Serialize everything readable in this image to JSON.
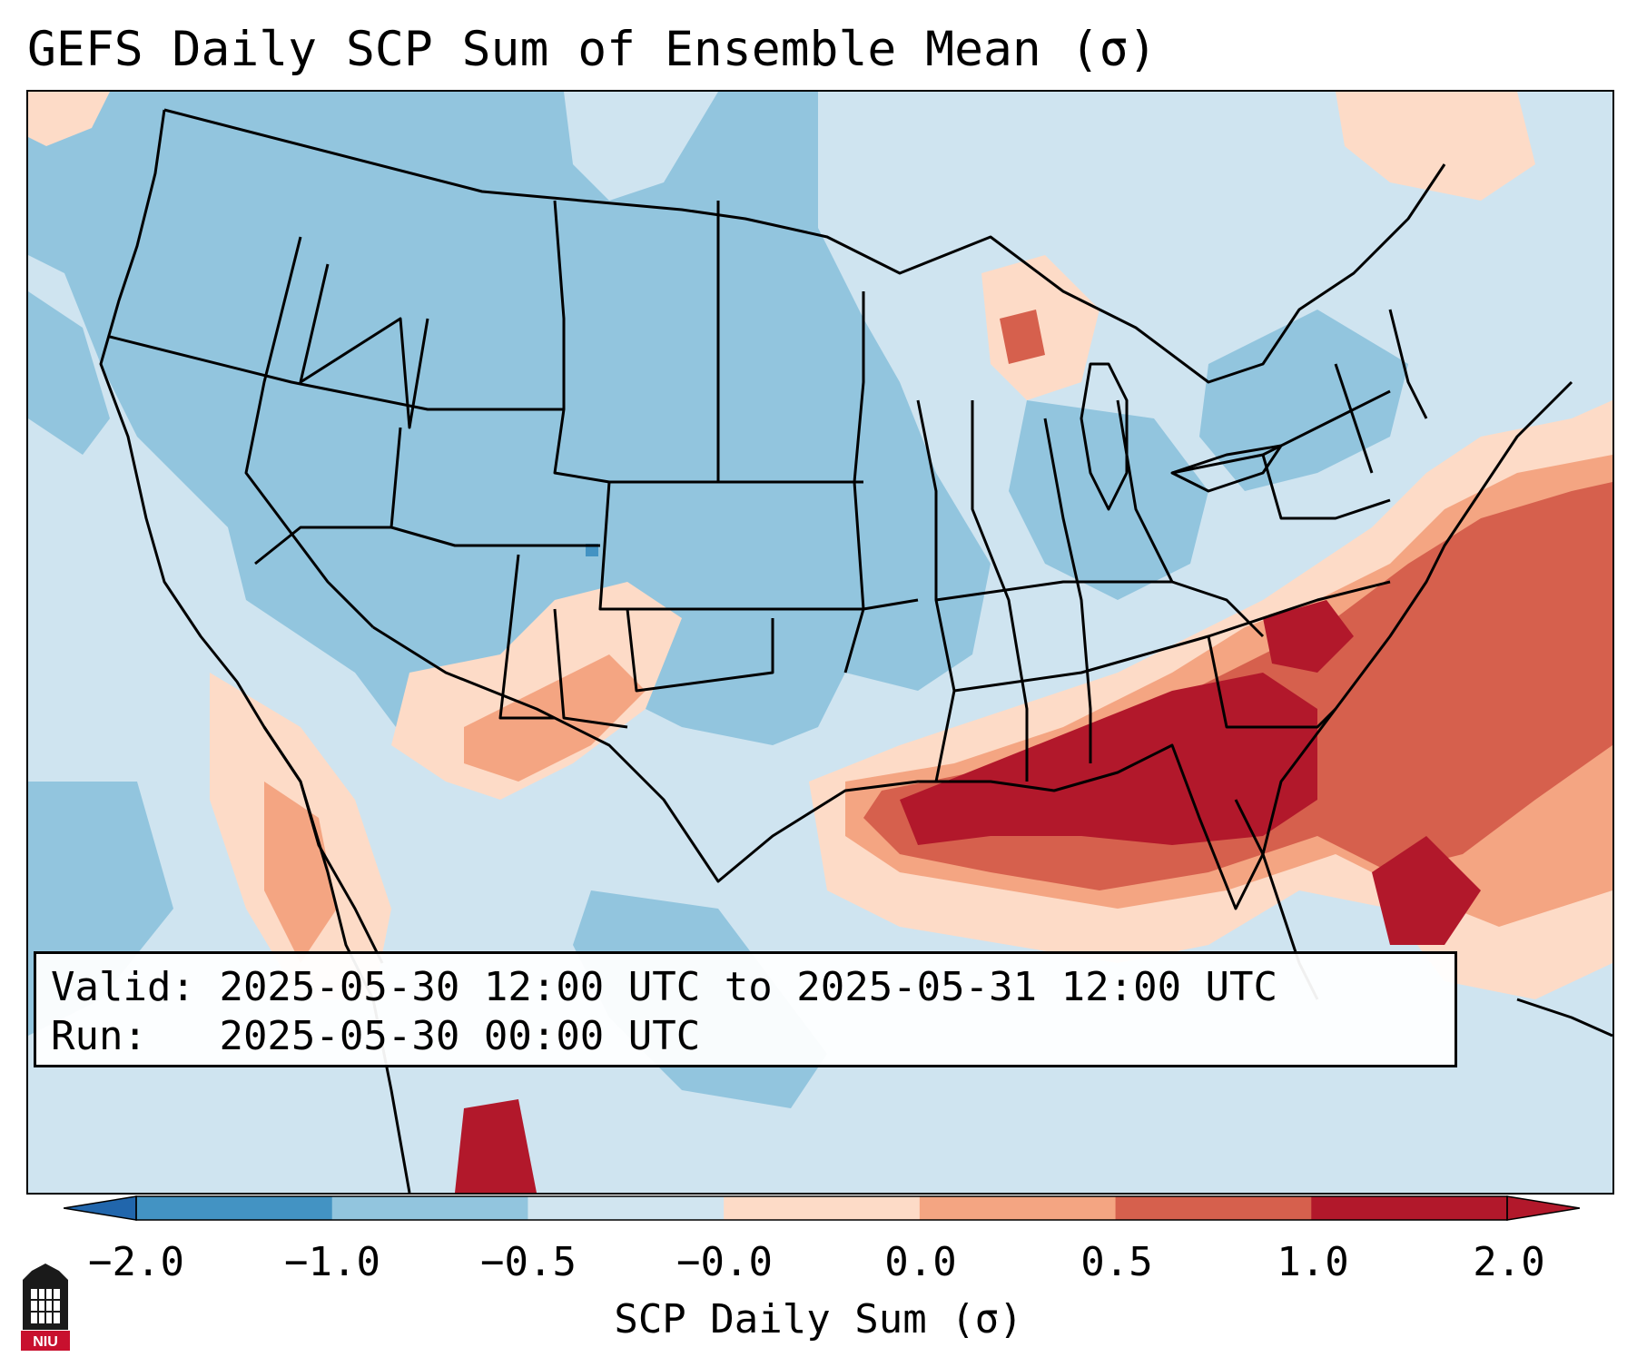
{
  "title": "GEFS Daily SCP Sum of Ensemble Mean (σ)",
  "info": {
    "valid_label": "Valid:",
    "valid_value": "2025-05-30 12:00 UTC to 2025-05-31 12:00 UTC",
    "run_label": "Run:",
    "run_value": "2025-05-30 00:00 UTC"
  },
  "colorbar": {
    "title": "SCP Daily Sum (σ)",
    "ticks": [
      "−2.0",
      "−1.0",
      "−0.5",
      "−0.0",
      "0.0",
      "0.5",
      "1.0",
      "2.0"
    ],
    "colors": [
      "#4393c3",
      "#92c5de",
      "#d1e5f0",
      "#fddbc7",
      "#f4a582",
      "#d6604d",
      "#b2182b"
    ],
    "under_color": "#2166ac",
    "over_color": "#67001f"
  },
  "logo": {
    "text": "NIU"
  },
  "colors": {
    "base": "#cfe4f0",
    "mid_blue": "#92c5de",
    "dark_blue": "#4393c3",
    "light_red": "#fddbc7",
    "mid_red": "#f4a582",
    "red": "#d6604d",
    "dark_red": "#b2182b"
  }
}
